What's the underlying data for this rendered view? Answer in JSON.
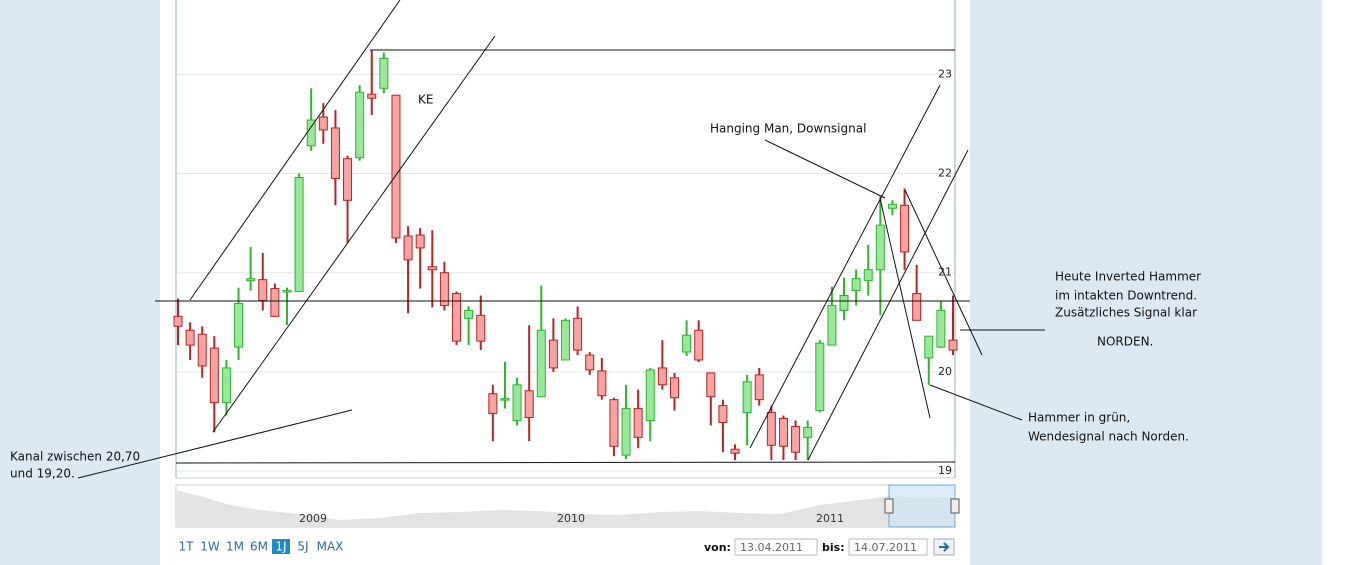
{
  "chart_data": {
    "type": "candlestick",
    "open": [
      20.56,
      20.42,
      20.38,
      20.24,
      19.69,
      20.25,
      20.92,
      20.93,
      20.84,
      20.81,
      20.81,
      22.28,
      22.57,
      22.46,
      22.15,
      22.16,
      22.8,
      22.86,
      22.79,
      21.37,
      21.38,
      21.06,
      21.0,
      20.79,
      20.54,
      20.57,
      19.78,
      19.72,
      19.51,
      19.81,
      19.75,
      20.32,
      20.12,
      20.54,
      20.17,
      20.01,
      19.72,
      19.16,
      19.63,
      19.51,
      20.04,
      19.94,
      20.2,
      20.42,
      19.99,
      19.66,
      19.22,
      19.59,
      19.97,
      19.59,
      19.53,
      19.45,
      19.34,
      19.61,
      20.27,
      20.62,
      20.82,
      20.92,
      21.03,
      21.65,
      21.68,
      20.79,
      20.14,
      20.25,
      20.32
    ],
    "high": [
      20.74,
      20.5,
      20.46,
      20.36,
      20.12,
      20.85,
      21.26,
      21.2,
      20.89,
      20.85,
      22.0,
      22.86,
      22.71,
      22.64,
      22.18,
      22.89,
      23.24,
      23.22,
      22.79,
      21.47,
      21.45,
      21.43,
      21.11,
      20.81,
      20.66,
      20.77,
      19.87,
      20.1,
      19.94,
      20.47,
      20.87,
      20.54,
      20.54,
      20.66,
      20.2,
      20.14,
      19.74,
      19.87,
      19.82,
      20.04,
      20.32,
      19.99,
      20.52,
      20.52,
      19.99,
      19.72,
      19.27,
      19.97,
      20.04,
      19.66,
      19.56,
      19.51,
      19.51,
      20.32,
      20.86,
      20.95,
      21.03,
      21.28,
      21.78,
      21.73,
      21.85,
      21.08,
      20.36,
      20.72,
      20.77
    ],
    "low": [
      20.27,
      20.12,
      19.94,
      19.39,
      19.56,
      20.12,
      20.82,
      20.62,
      20.56,
      20.47,
      20.81,
      22.23,
      22.3,
      21.68,
      21.3,
      22.13,
      22.59,
      22.81,
      21.3,
      20.59,
      20.84,
      20.65,
      20.62,
      20.27,
      20.27,
      20.22,
      19.3,
      19.63,
      19.46,
      19.3,
      19.75,
      20.0,
      20.12,
      20.17,
      19.97,
      19.72,
      19.15,
      19.12,
      19.23,
      19.3,
      19.82,
      19.61,
      20.16,
      20.1,
      19.46,
      19.19,
      19.11,
      19.26,
      19.66,
      19.11,
      19.11,
      19.11,
      19.11,
      19.59,
      20.27,
      20.52,
      20.67,
      20.77,
      20.57,
      21.58,
      21.03,
      20.52,
      19.87,
      20.24,
      20.17
    ],
    "close": [
      20.46,
      20.27,
      20.06,
      19.69,
      20.04,
      20.69,
      20.94,
      20.72,
      20.56,
      20.82,
      21.96,
      22.54,
      22.44,
      21.95,
      21.73,
      22.82,
      22.76,
      23.16,
      21.35,
      21.13,
      21.25,
      21.03,
      20.67,
      20.31,
      20.62,
      20.31,
      19.58,
      19.73,
      19.87,
      19.54,
      20.42,
      20.04,
      20.52,
      20.22,
      20.02,
      19.76,
      19.25,
      19.63,
      19.34,
      20.02,
      19.87,
      19.74,
      20.37,
      20.12,
      19.75,
      19.49,
      19.18,
      19.9,
      19.72,
      19.26,
      19.25,
      19.19,
      19.44,
      20.29,
      20.67,
      20.77,
      20.94,
      21.03,
      21.48,
      21.69,
      21.21,
      20.52,
      20.36,
      20.62,
      20.22
    ],
    "up_color": "#2db52d",
    "down_color": "#b52424",
    "ylim": [
      18.93,
      23.75
    ],
    "yticks": [
      19,
      20,
      21,
      22,
      23
    ],
    "grid": true,
    "annotations": [
      "KE",
      "Hanging Man, Downsignal",
      "Heute Inverted Hammer",
      "im intakten Downtrend.",
      "Zusätzliches Signal klar",
      "NORDEN.",
      "Hammer in grün,",
      "Wendesignal nach Norden.",
      "Kanal zwischen 20,70",
      "und 19,20."
    ],
    "navigator_labels": [
      "2009",
      "2010",
      "2011"
    ],
    "range_buttons": [
      "1T",
      "1W",
      "1M",
      "6M",
      "1J",
      "5J",
      "MAX"
    ],
    "from_label": "von:",
    "from_date": "13.04.2011",
    "to_label": "bis:",
    "to_date": "14.07.2011"
  }
}
